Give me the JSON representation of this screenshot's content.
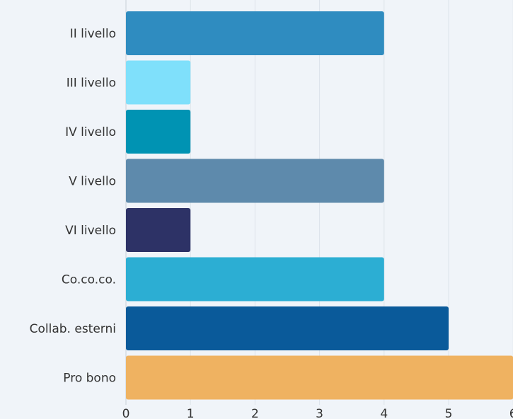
{
  "chart_data": {
    "type": "bar",
    "orientation": "horizontal",
    "categories": [
      "II livello",
      "III livello",
      "IV livello",
      "V livello",
      "VI livello",
      "Co.co.co.",
      "Collab. esterni",
      "Pro bono"
    ],
    "values": [
      4,
      1,
      1,
      4,
      1,
      4,
      5,
      6
    ],
    "bar_colors": [
      "#2f8cc0",
      "#7fe0fb",
      "#0093b3",
      "#5e8aac",
      "#2d3266",
      "#2caed3",
      "#0a5a9a",
      "#efb261"
    ],
    "x_ticks": [
      "0",
      "1",
      "2",
      "3",
      "4",
      "5",
      "6"
    ],
    "xlim": [
      0,
      6
    ],
    "grid": true,
    "title": "",
    "xlabel": "",
    "ylabel": ""
  }
}
